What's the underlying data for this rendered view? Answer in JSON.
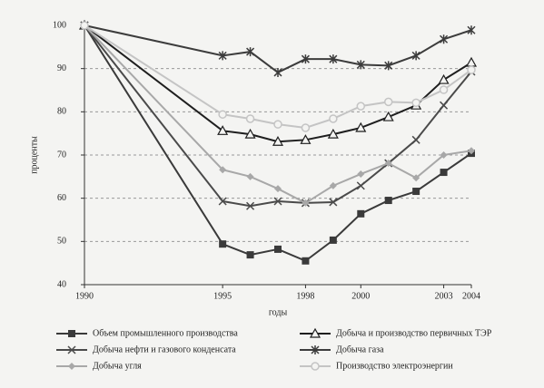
{
  "chart_data": {
    "type": "line",
    "x_label": "годы",
    "y_label": "проценты",
    "x": [
      1990,
      1995,
      1996,
      1997,
      1998,
      1999,
      2000,
      2001,
      2002,
      2003,
      2004
    ],
    "xlim": [
      1990,
      2004
    ],
    "xticks": [
      1990,
      1995,
      1998,
      2000,
      2003,
      2004
    ],
    "ylim": [
      40,
      100
    ],
    "yticks": [
      40,
      50,
      60,
      70,
      80,
      90,
      100
    ],
    "grid": true,
    "series": [
      {
        "name": "Объем промышленного производства",
        "color": "#3a3a3a",
        "marker": "square",
        "values": [
          100,
          49.4,
          46.9,
          48.2,
          45.5,
          50.3,
          56.4,
          59.5,
          61.6,
          66,
          70.4
        ]
      },
      {
        "name": "Добыча и производство первичных ТЭР",
        "color": "#1e1e1e",
        "marker": "triangle",
        "values": [
          100,
          75.6,
          74.8,
          73.1,
          73.5,
          74.8,
          76.3,
          78.8,
          81.5,
          87.4,
          91.4
        ]
      },
      {
        "name": "Добыча нефти и газового конденсата",
        "color": "#4a4a4a",
        "marker": "x",
        "values": [
          100,
          59.3,
          58.2,
          59.3,
          58.9,
          59.1,
          62.9,
          68.1,
          73.5,
          81.5,
          89.3
        ]
      },
      {
        "name": "Добыча газа",
        "color": "#3c3c3c",
        "marker": "asterisk",
        "values": [
          100,
          93,
          93.9,
          89.1,
          92.2,
          92.2,
          90.9,
          90.7,
          93,
          96.8,
          98.9
        ]
      },
      {
        "name": "Добыча угля",
        "color": "#a8a8a8",
        "marker": "diamond",
        "values": [
          100,
          66.6,
          65,
          62.2,
          58.9,
          62.9,
          65.6,
          68.1,
          64.7,
          70,
          71
        ]
      },
      {
        "name": "Производство электроэнергии",
        "color": "#c4c4c4",
        "marker": "circle",
        "values": [
          100,
          79.4,
          78.4,
          77.1,
          76.3,
          78.4,
          81.3,
          82.3,
          82.1,
          85.1,
          89.7
        ]
      }
    ]
  }
}
